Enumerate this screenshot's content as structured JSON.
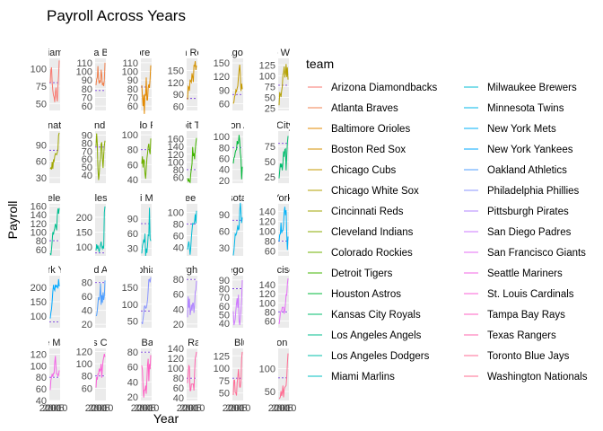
{
  "chart_data": {
    "type": "line",
    "title": "Payroll Across Years",
    "xlabel": "Year",
    "ylabel": "Payroll",
    "legend_title": "team",
    "legend_placement": "right",
    "background": "#ebebeb",
    "x": [
      2000,
      2001,
      2002,
      2003,
      2004,
      2005,
      2006,
      2007,
      2008,
      2009,
      2010,
      2011,
      2012,
      2013,
      2014
    ],
    "x_tick_labels": [
      "2000",
      "2005",
      "2010"
    ],
    "facet_titles": [
      "Arizona Diamondbacks",
      "Atlanta Braves",
      "Baltimore Orioles",
      "Boston Red Sox",
      "Chicago Cubs",
      "Chicago White Sox",
      "Cincinnati Reds",
      "Cleveland Indians",
      "Colorado Rockies",
      "Detroit Tigers",
      "Houston Astros",
      "Kansas City Royals",
      "Los Angeles Angels",
      "Los Angeles Dodgers",
      "Miami Marlins",
      "Milwaukee Brewers",
      "Minnesota Twins",
      "New York Mets",
      "New York Yankees",
      "Oakland Athletics",
      "Philadelphia Phillies",
      "Pittsburgh Pirates",
      "San Diego Padres",
      "San Francisco Giants",
      "Seattle Mariners",
      "St. Louis Cardinals",
      "Tampa Bay Rays",
      "Texas Rangers",
      "Toronto Blue Jays",
      "Washington Nationals"
    ],
    "series": [
      {
        "name": "Arizona Diamondbacks",
        "color": "#F8766D",
        "ylim": [
          40,
          115
        ],
        "yticks": [
          50,
          75,
          100
        ],
        "ref": 80,
        "values": [
          80,
          98,
          102,
          80,
          69,
          62,
          59,
          52,
          66,
          73,
          60,
          53,
          74,
          90,
          112
        ]
      },
      {
        "name": "Atlanta Braves",
        "color": "#F0814F",
        "ylim": [
          55,
          115
        ],
        "yticks": [
          60,
          70,
          80,
          90,
          100,
          110
        ],
        "ref": 78,
        "values": [
          84,
          91,
          93,
          106,
          90,
          86,
          90,
          87,
          102,
          96,
          84,
          87,
          83,
          90,
          110
        ]
      },
      {
        "name": "Baltimore Orioles",
        "color": "#E38900",
        "ylim": [
          55,
          115
        ],
        "yticks": [
          60,
          70,
          80,
          90,
          100,
          110
        ],
        "ref": 82,
        "values": [
          84,
          72,
          60,
          73,
          51,
          74,
          72,
          93,
          67,
          67,
          81,
          85,
          81,
          92,
          107
        ]
      },
      {
        "name": "Boston Red Sox",
        "color": "#D49200",
        "ylim": [
          50,
          180
        ],
        "yticks": [
          60,
          90,
          120,
          150
        ],
        "ref": 80,
        "values": [
          77,
          110,
          108,
          99,
          127,
          123,
          120,
          143,
          133,
          121,
          162,
          161,
          173,
          151,
          162
        ]
      },
      {
        "name": "Chicago Cubs",
        "color": "#C49A00",
        "ylim": [
          45,
          160
        ],
        "yticks": [
          60,
          90,
          120,
          150
        ],
        "ref": 80,
        "values": [
          60,
          64,
          76,
          79,
          90,
          87,
          94,
          99,
          118,
          134,
          146,
          125,
          88,
          104,
          92
        ]
      },
      {
        "name": "Chicago White Sox",
        "color": "#B3A000",
        "ylim": [
          20,
          140
        ],
        "yticks": [
          25,
          50,
          75,
          100,
          125
        ],
        "ref": 78,
        "values": [
          32,
          62,
          57,
          51,
          65,
          75,
          102,
          108,
          121,
          96,
          105,
          127,
          97,
          119,
          91
        ]
      },
      {
        "name": "Cincinnati Reds",
        "color": "#A0A600",
        "ylim": [
          20,
          115
        ],
        "yticks": [
          30,
          60,
          90
        ],
        "ref": 80,
        "values": [
          46,
          48,
          45,
          59,
          46,
          62,
          60,
          69,
          74,
          73,
          72,
          76,
          82,
          107,
          112
        ]
      },
      {
        "name": "Cleveland Indians",
        "color": "#8AAB00",
        "ylim": [
          30,
          95
        ],
        "yticks": [
          40,
          50,
          60,
          70,
          80,
          90
        ],
        "ref": 75,
        "values": [
          76,
          92,
          79,
          48,
          34,
          41,
          56,
          61,
          79,
          81,
          61,
          49,
          65,
          77,
          83
        ]
      },
      {
        "name": "Colorado Rockies",
        "color": "#6FB000",
        "ylim": [
          35,
          105
        ],
        "yticks": [
          40,
          60,
          80,
          100
        ],
        "ref": 80,
        "values": [
          61,
          71,
          56,
          67,
          65,
          48,
          41,
          54,
          68,
          75,
          84,
          88,
          78,
          74,
          95
        ]
      },
      {
        "name": "Detroit Tigers",
        "color": "#41B500",
        "ylim": [
          45,
          180
        ],
        "yticks": [
          60,
          80,
          100,
          120,
          140,
          160
        ],
        "ref": 80,
        "values": [
          58,
          49,
          55,
          49,
          47,
          69,
          82,
          95,
          139,
          115,
          123,
          107,
          132,
          149,
          162
        ]
      },
      {
        "name": "Houston Astros",
        "color": "#00B93B",
        "ylim": [
          15,
          110
        ],
        "yticks": [
          20,
          40,
          60,
          80,
          100
        ],
        "ref": 80,
        "values": [
          51,
          61,
          63,
          71,
          75,
          76,
          92,
          87,
          88,
          103,
          92,
          70,
          60,
          22,
          45
        ]
      },
      {
        "name": "Kansas City Royals",
        "color": "#00BC6D",
        "ylim": [
          15,
          100
        ],
        "yticks": [
          25,
          50,
          75
        ],
        "ref": 80,
        "values": [
          23,
          35,
          47,
          41,
          47,
          36,
          47,
          67,
          58,
          70,
          71,
          36,
          60,
          81,
          92
        ]
      },
      {
        "name": "Los Angeles Angels",
        "color": "#00BE8D",
        "ylim": [
          45,
          165
        ],
        "yticks": [
          60,
          80,
          100,
          120,
          140,
          160
        ],
        "ref": 80,
        "values": [
          51,
          47,
          61,
          79,
          100,
          94,
          103,
          109,
          119,
          113,
          104,
          138,
          154,
          142,
          155
        ]
      },
      {
        "name": "Los Angeles Dodgers",
        "color": "#00BFA8",
        "ylim": [
          70,
          245
        ],
        "yticks": [
          100,
          150,
          200
        ],
        "ref": 80,
        "values": [
          88,
          109,
          94,
          105,
          92,
          83,
          98,
          108,
          118,
          100,
          94,
          104,
          95,
          216,
          236
        ]
      },
      {
        "name": "Miami Marlins",
        "color": "#00BFC0",
        "ylim": [
          15,
          120
        ],
        "yticks": [
          30,
          60,
          90
        ],
        "ref": 80,
        "values": [
          20,
          35,
          41,
          48,
          42,
          60,
          15,
          30,
          21,
          36,
          57,
          56,
          112,
          50,
          45
        ]
      },
      {
        "name": "Milwaukee Brewers",
        "color": "#00BCD6",
        "ylim": [
          25,
          115
        ],
        "yticks": [
          40,
          60,
          80,
          100
        ],
        "ref": 80,
        "values": [
          36,
          44,
          50,
          40,
          27,
          39,
          57,
          70,
          81,
          80,
          81,
          85,
          97,
          81,
          103
        ]
      },
      {
        "name": "Minnesota Twins",
        "color": "#00B7E9",
        "ylim": [
          15,
          110
        ],
        "yticks": [
          30,
          60,
          90
        ],
        "ref": 80,
        "values": [
          16,
          25,
          40,
          55,
          53,
          56,
          63,
          71,
          62,
          65,
          97,
          112,
          94,
          75,
          85
        ]
      },
      {
        "name": "New York Mets",
        "color": "#00B1F8",
        "ylim": [
          50,
          155
        ],
        "yticks": [
          60,
          80,
          100,
          120,
          140
        ],
        "ref": 80,
        "values": [
          79,
          93,
          94,
          117,
          96,
          101,
          101,
          115,
          138,
          149,
          132,
          142,
          93,
          62,
          89
        ]
      },
      {
        "name": "New York Yankees",
        "color": "#00A8FF",
        "ylim": [
          60,
          240
        ],
        "yticks": [
          100,
          150,
          200
        ],
        "ref": 80,
        "values": [
          92,
          112,
          125,
          152,
          184,
          208,
          194,
          189,
          209,
          201,
          206,
          202,
          196,
          228,
          203
        ]
      },
      {
        "name": "Oakland Athletics",
        "color": "#4F9FFF",
        "ylim": [
          15,
          90
        ],
        "yticks": [
          20,
          40,
          60,
          80
        ],
        "ref": 80,
        "values": [
          32,
          33,
          40,
          50,
          59,
          55,
          62,
          79,
          48,
          62,
          51,
          66,
          55,
          61,
          83
        ]
      },
      {
        "name": "Philadelphia Phillies",
        "color": "#8994FF",
        "ylim": [
          30,
          185
        ],
        "yticks": [
          50,
          100,
          150
        ],
        "ref": 80,
        "values": [
          47,
          41,
          57,
          71,
          93,
          95,
          88,
          89,
          98,
          113,
          141,
          173,
          174,
          165,
          180
        ]
      },
      {
        "name": "Pittsburgh Pirates",
        "color": "#B186FF",
        "ylim": [
          15,
          85
        ],
        "yticks": [
          20,
          40,
          60,
          80
        ],
        "ref": 80,
        "values": [
          29,
          57,
          42,
          54,
          32,
          38,
          46,
          38,
          48,
          48,
          35,
          46,
          63,
          66,
          78
        ]
      },
      {
        "name": "San Diego Padres",
        "color": "#CE79FF",
        "ylim": [
          35,
          95
        ],
        "yticks": [
          40,
          50,
          60,
          70,
          80,
          90
        ],
        "ref": 80,
        "values": [
          54,
          38,
          41,
          45,
          55,
          63,
          69,
          58,
          73,
          43,
          38,
          45,
          55,
          68,
          90
        ]
      },
      {
        "name": "San Francisco Giants",
        "color": "#E46EF6",
        "ylim": [
          45,
          160
        ],
        "yticks": [
          60,
          80,
          100,
          120,
          140
        ],
        "ref": 80,
        "values": [
          53,
          63,
          78,
          82,
          82,
          90,
          90,
          90,
          76,
          83,
          98,
          118,
          117,
          142,
          154
        ]
      },
      {
        "name": "Seattle Mariners",
        "color": "#F365E6",
        "ylim": [
          40,
          130
        ],
        "yticks": [
          40,
          60,
          80,
          100,
          120
        ],
        "ref": 80,
        "values": [
          58,
          75,
          80,
          86,
          81,
          87,
          87,
          106,
          117,
          98,
          86,
          86,
          82,
          84,
          92
        ]
      },
      {
        "name": "St. Louis Cardinals",
        "color": "#FB61D7",
        "ylim": [
          40,
          125
        ],
        "yticks": [
          60,
          80,
          100,
          120
        ],
        "ref": 80,
        "values": [
          61,
          78,
          74,
          83,
          83,
          92,
          88,
          90,
          100,
          77,
          93,
          105,
          110,
          116,
          111
        ]
      },
      {
        "name": "Tampa Bay Rays",
        "color": "#FF61C3",
        "ylim": [
          15,
          85
        ],
        "yticks": [
          20,
          40,
          60,
          80
        ],
        "ref": 80,
        "values": [
          62,
          56,
          34,
          19,
          29,
          29,
          35,
          24,
          43,
          63,
          71,
          41,
          64,
          57,
          76
        ]
      },
      {
        "name": "Texas Rangers",
        "color": "#FF65AE",
        "ylim": [
          35,
          140
        ],
        "yticks": [
          40,
          60,
          80,
          100,
          120,
          140
        ],
        "ref": 80,
        "values": [
          70,
          88,
          105,
          103,
          55,
          55,
          68,
          68,
          68,
          68,
          55,
          92,
          120,
          125,
          133
        ]
      },
      {
        "name": "Toronto Blue Jays",
        "color": "#FF6B94",
        "ylim": [
          35,
          140
        ],
        "yticks": [
          50,
          75,
          100,
          125
        ],
        "ref": 80,
        "values": [
          46,
          76,
          76,
          51,
          50,
          45,
          71,
          82,
          98,
          80,
          62,
          62,
          75,
          119,
          133
        ]
      },
      {
        "name": "Washington Nationals",
        "color": "#FF6C91",
        "ylim": [
          30,
          145
        ],
        "yticks": [
          50,
          100
        ],
        "ref": 80,
        "values": [
          34,
          35,
          38,
          51,
          40,
          48,
          63,
          37,
          54,
          59,
          61,
          63,
          81,
          112,
          134
        ]
      }
    ]
  }
}
